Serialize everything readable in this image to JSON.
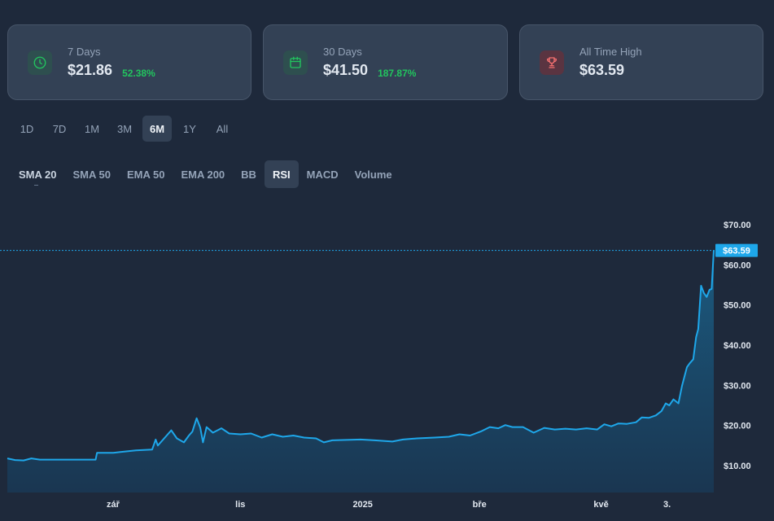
{
  "cards": [
    {
      "label": "7 Days",
      "value": "$21.86",
      "pct": "52.38%",
      "icon": "clock-icon",
      "tone": "#22c55e"
    },
    {
      "label": "30 Days",
      "value": "$41.50",
      "pct": "187.87%",
      "icon": "calendar-icon",
      "tone": "#22c55e"
    },
    {
      "label": "All Time High",
      "value": "$63.59",
      "pct": null,
      "icon": "trophy-icon",
      "tone": "#f87171"
    }
  ],
  "range_tabs": [
    "1D",
    "7D",
    "1M",
    "3M",
    "6M",
    "1Y",
    "All"
  ],
  "range_active": "6M",
  "indicators": [
    "SMA 20",
    "SMA 50",
    "EMA 50",
    "EMA 200",
    "BB",
    "RSI",
    "MACD",
    "Volume"
  ],
  "indicator_active": "RSI",
  "colors": {
    "line": "#1ea7ea",
    "fill_top": "#1b5a7f",
    "fill_bottom": "#1a3651",
    "tag": "#1ea7ea",
    "positive": "#22c55e"
  },
  "chart_data": {
    "type": "area",
    "y_ticks": [
      "$10.00",
      "$20.00",
      "$30.00",
      "$40.00",
      "$50.00",
      "$60.00",
      "$70.00"
    ],
    "ylim": [
      4,
      72
    ],
    "x_ticks": [
      {
        "label": "zář",
        "t": 0.1497
      },
      {
        "label": "lis",
        "t": 0.3298
      },
      {
        "label": "2025",
        "t": 0.5031
      },
      {
        "label": "bře",
        "t": 0.6684
      },
      {
        "label": "kvě",
        "t": 0.8405
      },
      {
        "label": "3.",
        "t": 0.9339
      }
    ],
    "current_price_label": "$63.59",
    "current_price": 63.59,
    "points": [
      [
        0.0,
        11.8
      ],
      [
        0.011,
        11.4
      ],
      [
        0.023,
        11.3
      ],
      [
        0.034,
        11.8
      ],
      [
        0.046,
        11.5
      ],
      [
        0.08,
        11.5
      ],
      [
        0.125,
        11.5
      ],
      [
        0.127,
        13.2
      ],
      [
        0.15,
        13.2
      ],
      [
        0.16,
        13.4
      ],
      [
        0.182,
        13.8
      ],
      [
        0.205,
        14.0
      ],
      [
        0.21,
        16.5
      ],
      [
        0.213,
        15.0
      ],
      [
        0.223,
        17.0
      ],
      [
        0.232,
        18.8
      ],
      [
        0.24,
        16.8
      ],
      [
        0.25,
        15.8
      ],
      [
        0.257,
        17.5
      ],
      [
        0.262,
        18.5
      ],
      [
        0.268,
        21.8
      ],
      [
        0.273,
        19.5
      ],
      [
        0.277,
        15.8
      ],
      [
        0.282,
        19.6
      ],
      [
        0.291,
        18.2
      ],
      [
        0.303,
        19.3
      ],
      [
        0.314,
        18.0
      ],
      [
        0.33,
        17.8
      ],
      [
        0.345,
        18.0
      ],
      [
        0.36,
        17.0
      ],
      [
        0.375,
        17.8
      ],
      [
        0.39,
        17.2
      ],
      [
        0.405,
        17.5
      ],
      [
        0.42,
        17.0
      ],
      [
        0.437,
        16.8
      ],
      [
        0.448,
        15.8
      ],
      [
        0.46,
        16.3
      ],
      [
        0.48,
        16.4
      ],
      [
        0.5,
        16.5
      ],
      [
        0.52,
        16.3
      ],
      [
        0.545,
        16.0
      ],
      [
        0.56,
        16.5
      ],
      [
        0.58,
        16.8
      ],
      [
        0.605,
        17.0
      ],
      [
        0.625,
        17.2
      ],
      [
        0.64,
        17.8
      ],
      [
        0.655,
        17.5
      ],
      [
        0.67,
        18.5
      ],
      [
        0.683,
        19.6
      ],
      [
        0.695,
        19.3
      ],
      [
        0.705,
        20.1
      ],
      [
        0.715,
        19.6
      ],
      [
        0.73,
        19.6
      ],
      [
        0.745,
        18.2
      ],
      [
        0.76,
        19.4
      ],
      [
        0.775,
        19.0
      ],
      [
        0.79,
        19.2
      ],
      [
        0.805,
        19.0
      ],
      [
        0.82,
        19.3
      ],
      [
        0.835,
        19.0
      ],
      [
        0.845,
        20.3
      ],
      [
        0.855,
        19.8
      ],
      [
        0.865,
        20.5
      ],
      [
        0.877,
        20.4
      ],
      [
        0.89,
        20.8
      ],
      [
        0.898,
        22.0
      ],
      [
        0.908,
        21.9
      ],
      [
        0.918,
        22.5
      ],
      [
        0.926,
        23.6
      ],
      [
        0.932,
        25.5
      ],
      [
        0.937,
        25.0
      ],
      [
        0.943,
        26.5
      ],
      [
        0.95,
        25.5
      ],
      [
        0.955,
        29.8
      ],
      [
        0.962,
        34.5
      ],
      [
        0.966,
        35.5
      ],
      [
        0.971,
        36.5
      ],
      [
        0.975,
        42.0
      ],
      [
        0.978,
        44.0
      ],
      [
        0.982,
        54.8
      ],
      [
        0.986,
        53.0
      ],
      [
        0.99,
        52.0
      ],
      [
        0.994,
        53.8
      ],
      [
        0.997,
        54.0
      ],
      [
        1.0,
        63.59
      ]
    ]
  }
}
